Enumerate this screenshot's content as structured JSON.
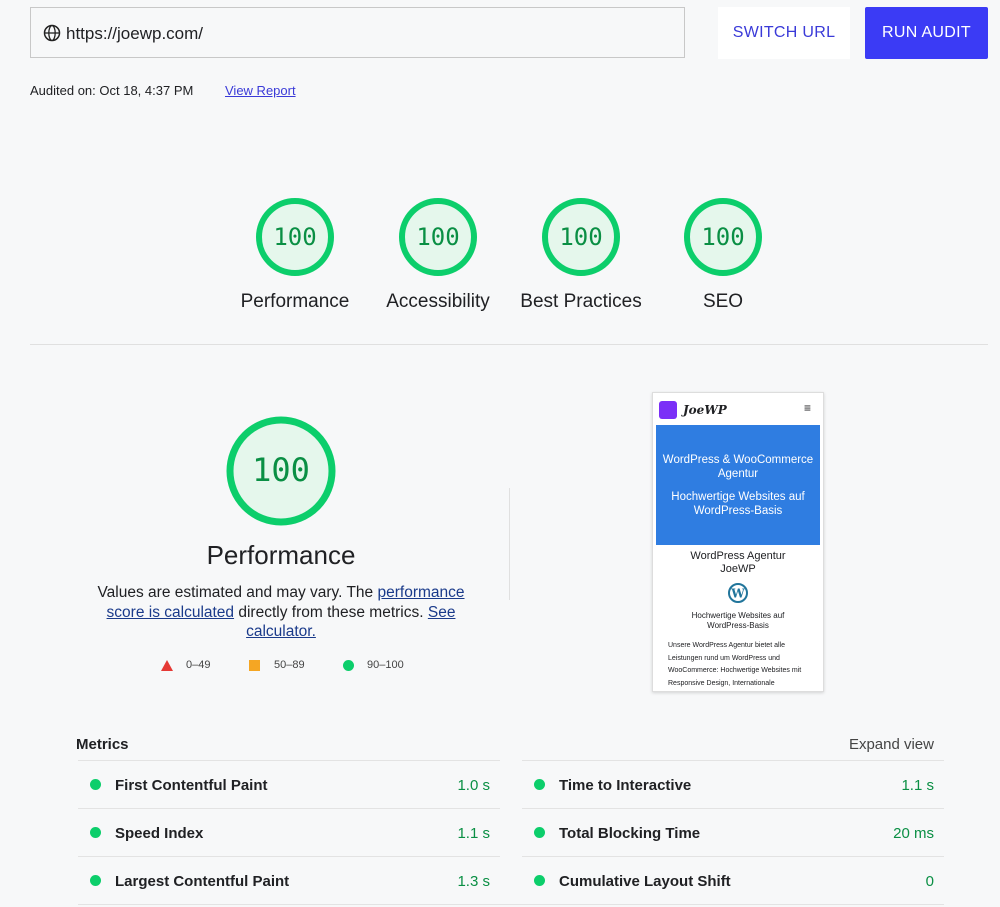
{
  "toolbar": {
    "url": "https://joewp.com/",
    "switch_button": "SWITCH URL",
    "run_button": "RUN AUDIT"
  },
  "audit_info": {
    "audited_on": "Audited on: Oct 18, 4:37 PM",
    "view_report": "View Report"
  },
  "scores": [
    {
      "value": 100,
      "label": "Performance"
    },
    {
      "value": 100,
      "label": "Accessibility"
    },
    {
      "value": 100,
      "label": "Best Practices"
    },
    {
      "value": 100,
      "label": "SEO"
    }
  ],
  "performance": {
    "score": 100,
    "title": "Performance",
    "description": [
      "Values are estimated and may vary. The ",
      "performance score is calculated",
      " directly from these metrics. ",
      "See calculator."
    ],
    "legend": [
      "0–49",
      "50–89",
      "90–100"
    ]
  },
  "screenshot": {
    "logo": "JoeWP",
    "hero_title": "WordPress & WooCommerce Agentur",
    "hero_subtitle": "Hochwertige Websites auf WordPress-Basis",
    "heading": "WordPress Agentur JoeWP",
    "tagline": "Hochwertige Websites auf WordPress-Basis",
    "body": "Unsere WordPress Agentur bietet alle Leistungen rund um WordPress und WooCommerce: Hochwertige Websites mit Responsive Design, Internationale"
  },
  "metrics": {
    "title": "Metrics",
    "expand": "Expand view",
    "items": [
      {
        "name": "First Contentful Paint",
        "value": "1.0 s"
      },
      {
        "name": "Time to Interactive",
        "value": "1.1 s"
      },
      {
        "name": "Speed Index",
        "value": "1.1 s"
      },
      {
        "name": "Total Blocking Time",
        "value": "20 ms"
      },
      {
        "name": "Largest Contentful Paint",
        "value": "1.3 s"
      },
      {
        "name": "Cumulative Layout Shift",
        "value": "0"
      }
    ]
  }
}
